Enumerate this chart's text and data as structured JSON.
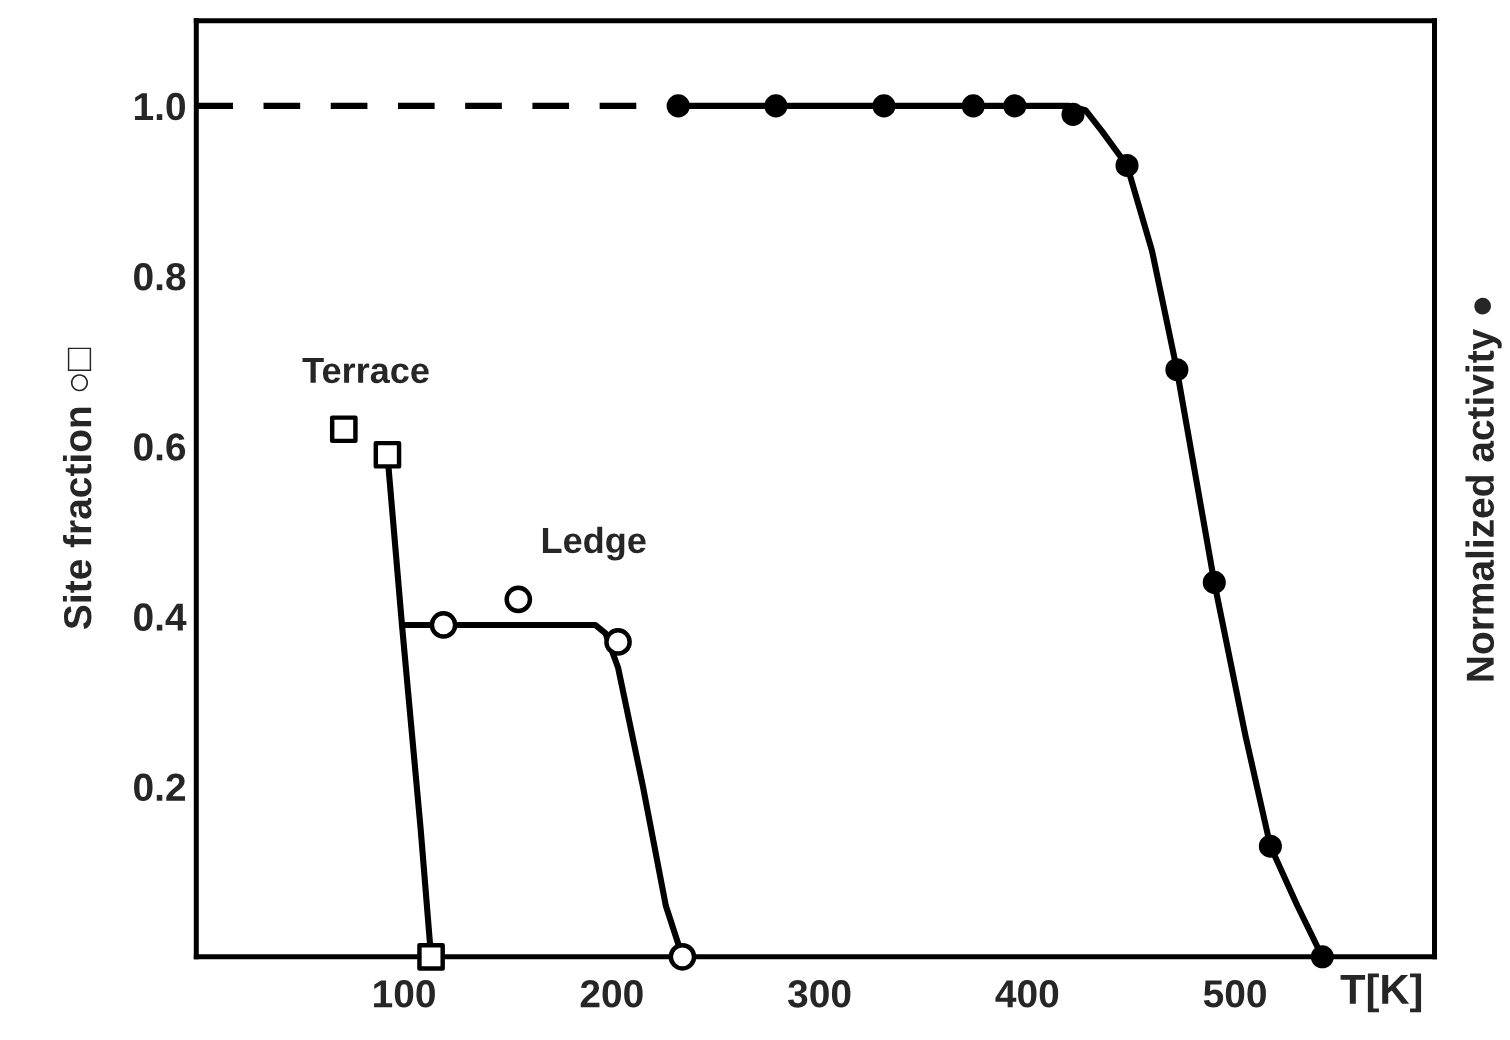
{
  "chart_data": {
    "type": "scatter",
    "xlabel": "T[K]",
    "ylabel": "Site fraction ○□",
    "y2label": "Normalized activity ●",
    "xlim": [
      0,
      596
    ],
    "xticks": [
      100,
      200,
      300,
      400,
      500
    ],
    "ylim": [
      0,
      1.1
    ],
    "yticks": [
      0.2,
      0.4,
      0.6,
      0.8,
      {
        "value": 1,
        "label": "1.0"
      }
    ],
    "grid": false,
    "legend": false,
    "series": [
      {
        "name": "Terrace",
        "marker": "square",
        "color": "#000000",
        "x": [
          71,
          92,
          113
        ],
        "values": [
          0.62,
          0.59,
          0
        ]
      },
      {
        "name": "Ledge",
        "marker": "circle",
        "color": "#000000",
        "x": [
          119,
          155,
          203,
          234
        ],
        "values": [
          0.39,
          0.42,
          0.37,
          0
        ]
      },
      {
        "type": "line",
        "marker": "none",
        "line_style": "solid",
        "color": "#000000",
        "x": [
          92,
          99,
          108,
          113
        ],
        "values": [
          0.59,
          0.39,
          0.15,
          0
        ]
      },
      {
        "type": "line",
        "marker": "none",
        "line_style": "solid",
        "color": "#000000",
        "x": [
          99,
          192,
          197,
          203,
          215,
          226,
          234
        ],
        "values": [
          0.39,
          0.39,
          0.38,
          0.34,
          0.2,
          0.06,
          0
        ]
      },
      {
        "marker": "circle",
        "color": "#000000",
        "x": [
          232,
          279,
          331,
          374,
          394,
          422,
          448,
          472,
          490,
          517,
          542
        ],
        "values": [
          1.0,
          1.0,
          1.0,
          1.0,
          1.0,
          0.99,
          0.93,
          0.69,
          0.44,
          0.13,
          0
        ]
      },
      {
        "type": "line",
        "marker": "none",
        "line_style": "solid",
        "color": "#000000",
        "x": [
          232,
          420,
          428,
          436,
          448,
          460,
          472,
          490,
          505,
          517,
          530,
          542
        ],
        "values": [
          1,
          1,
          0.995,
          0.97,
          0.93,
          0.83,
          0.69,
          0.44,
          0.26,
          0.13,
          0.06,
          0
        ]
      },
      {
        "type": "line",
        "marker": "none",
        "line_style": "dashed",
        "color": "#000000",
        "x": [
          0,
          232
        ],
        "values": [
          1,
          1
        ]
      }
    ]
  }
}
